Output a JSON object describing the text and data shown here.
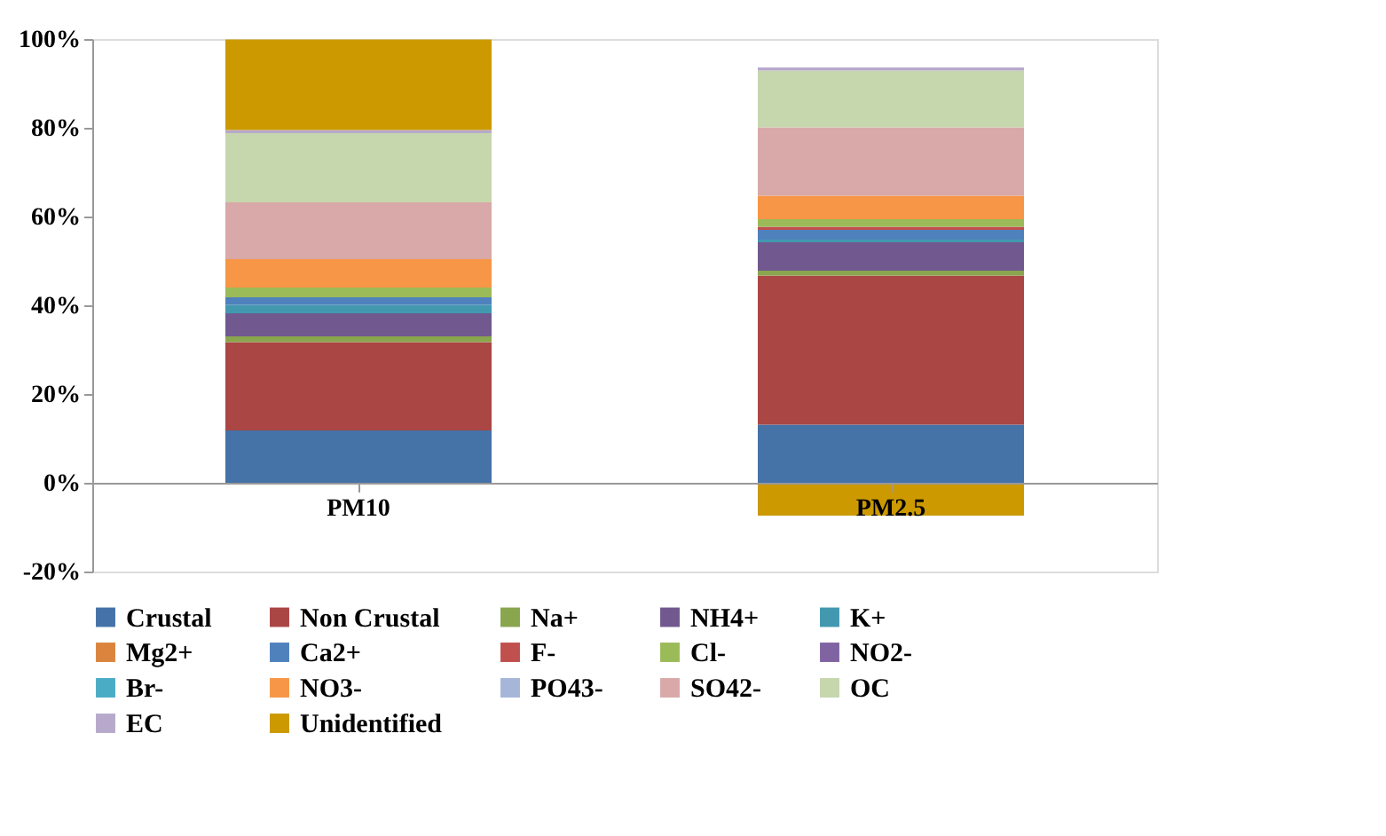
{
  "chart_data": {
    "type": "bar",
    "stacked": true,
    "categories": [
      "PM10",
      "PM2.5"
    ],
    "series": [
      {
        "name": "Crustal",
        "color": "#4572a7",
        "values": [
          11.8,
          13.1
        ]
      },
      {
        "name": "Non Crustal",
        "color": "#aa4643",
        "values": [
          19.9,
          33.6
        ]
      },
      {
        "name": "Na+",
        "color": "#89a54e",
        "values": [
          1.3,
          1.1
        ]
      },
      {
        "name": "NH4+",
        "color": "#71588f",
        "values": [
          5.2,
          6.4
        ]
      },
      {
        "name": "K+",
        "color": "#4198af",
        "values": [
          1.9,
          0.6
        ]
      },
      {
        "name": "Mg2+",
        "color": "#db843d",
        "values": [
          0,
          0
        ]
      },
      {
        "name": "Ca2+",
        "color": "#4f81bd",
        "values": [
          1.7,
          2.2
        ]
      },
      {
        "name": "F-",
        "color": "#c0504d",
        "values": [
          0,
          0.7
        ]
      },
      {
        "name": "Cl-",
        "color": "#9bbb59",
        "values": [
          2.2,
          1.7
        ]
      },
      {
        "name": "NO2-",
        "color": "#8064a2",
        "values": [
          0,
          0
        ]
      },
      {
        "name": "Br-",
        "color": "#4bacc6",
        "values": [
          0,
          0
        ]
      },
      {
        "name": "NO3-",
        "color": "#f79646",
        "values": [
          6.4,
          5.3
        ]
      },
      {
        "name": "PO43-",
        "color": "#a5b6d9",
        "values": [
          0,
          0
        ]
      },
      {
        "name": "SO42-",
        "color": "#d9a8a8",
        "values": [
          12.8,
          15.4
        ]
      },
      {
        "name": "OC",
        "color": "#c6d6ad",
        "values": [
          15.6,
          12.8
        ]
      },
      {
        "name": "EC",
        "color": "#b7a9cb",
        "values": [
          0.7,
          0.7
        ]
      },
      {
        "name": "Unidentified",
        "color": "#cc9900",
        "values": [
          20.4,
          -7.4
        ]
      }
    ],
    "ylim": [
      -20,
      100
    ],
    "yticks": [
      {
        "value": -20,
        "label": "-20%"
      },
      {
        "value": 0,
        "label": "0%"
      },
      {
        "value": 20,
        "label": "20%"
      },
      {
        "value": 40,
        "label": "40%"
      },
      {
        "value": 60,
        "label": "60%"
      },
      {
        "value": 80,
        "label": "80%"
      },
      {
        "value": 100,
        "label": "100%"
      }
    ],
    "grid": false,
    "legend": "bottom"
  }
}
